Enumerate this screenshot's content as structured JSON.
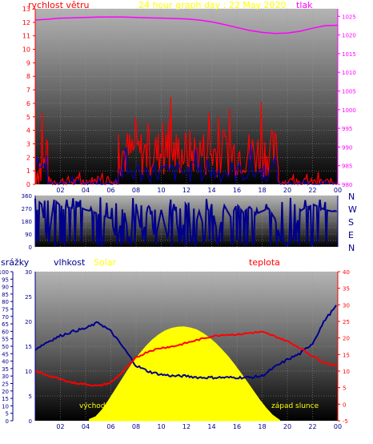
{
  "header": {
    "left_label": "rychlost větru",
    "title": "24 hour graph day : 22 May 2020",
    "right_label": "tlak"
  },
  "direction_labels": [
    "N",
    "W",
    "S",
    "E",
    "N"
  ],
  "bottom_labels": {
    "rain": "srážky",
    "humidity": "vlhkost",
    "solar": "Solar",
    "temperature": "teplota",
    "sunrise": "východ",
    "sunset": "západ slunce"
  },
  "colors": {
    "wind": "#ff0000",
    "gust": "#0000cc",
    "pressure": "#ff00ff",
    "direction": "#00008b",
    "humidity": "#00008b",
    "temperature": "#ff0000",
    "solar": "#ffff00",
    "title": "#ffff00",
    "axis_text": "#00008b"
  },
  "chart_data": [
    {
      "id": "wind_pressure",
      "type": "line",
      "title": "24 hour graph day : 22 May 2020",
      "x_ticks": [
        "02",
        "04",
        "06",
        "08",
        "10",
        "12",
        "14",
        "16",
        "18",
        "20",
        "22",
        "00"
      ],
      "y_left": {
        "label": "rychlost větru",
        "range": [
          0,
          13
        ],
        "ticks": [
          0,
          1,
          2,
          3,
          4,
          5,
          6,
          7,
          8,
          9,
          10,
          11,
          12,
          13
        ]
      },
      "y_right": {
        "label": "tlak",
        "range": [
          980,
          1027
        ],
        "ticks": [
          980,
          985,
          990,
          995,
          1000,
          1005,
          1010,
          1015,
          1020,
          1025
        ]
      },
      "series": [
        {
          "name": "tlak",
          "axis": "right",
          "x": [
            0,
            1,
            2,
            3,
            4,
            5,
            6,
            7,
            8,
            9,
            10,
            11,
            12,
            13,
            14,
            15,
            16,
            17,
            18,
            19,
            20,
            21,
            22,
            23,
            24
          ],
          "y": [
            1024,
            1024.2,
            1024.5,
            1024.6,
            1024.7,
            1024.8,
            1024.8,
            1024.8,
            1024.7,
            1024.6,
            1024.5,
            1024.4,
            1024.3,
            1024,
            1023.5,
            1022.8,
            1022,
            1021.2,
            1020.7,
            1020.4,
            1020.5,
            1021,
            1021.8,
            1022.5,
            1022.6
          ]
        },
        {
          "name": "",
          "role": "wind",
          "axis": "left",
          "segments": [
            {
              "from": 0,
              "to": 1.0,
              "base": 0.3,
              "amp": 2.2
            },
            {
              "from": 1.0,
              "to": 6.6,
              "base": 0.05,
              "amp": 0.4
            },
            {
              "from": 6.6,
              "to": 19.3,
              "base": 1.6,
              "amp": 1.8
            },
            {
              "from": 19.3,
              "to": 24,
              "base": 0.05,
              "amp": 0.3
            }
          ]
        },
        {
          "name": "",
          "role": "gust",
          "axis": "left",
          "segments": [
            {
              "from": 0,
              "to": 1.0,
              "base": 1.5,
              "amp": 0.6
            },
            {
              "from": 1.0,
              "to": 6.6,
              "base": 0.0,
              "amp": 0.2
            },
            {
              "from": 6.6,
              "to": 19.3,
              "base": 0.6,
              "amp": 0.8
            },
            {
              "from": 19.3,
              "to": 24,
              "base": 0.0,
              "amp": 0.1
            }
          ]
        }
      ]
    },
    {
      "id": "wind_direction",
      "type": "line",
      "x_ticks": [
        "02",
        "04",
        "06",
        "08",
        "10",
        "12",
        "14",
        "16",
        "18",
        "20",
        "22",
        "00"
      ],
      "y_left": {
        "range": [
          0,
          360
        ],
        "ticks": [
          0,
          45,
          90,
          135,
          180,
          225,
          270,
          315,
          360
        ]
      },
      "series": [
        {
          "name": "",
          "role": "direction",
          "x": [
            0,
            0.5,
            1,
            1.5,
            2,
            2.5,
            3,
            3.5,
            4,
            4.5,
            5,
            5.5,
            6,
            6.5,
            7,
            7.5,
            8,
            8.5,
            9,
            9.5,
            10,
            10.5,
            11,
            11.5,
            12,
            12.5,
            13,
            13.5,
            14,
            14.5,
            15,
            15.5,
            16,
            16.5,
            17,
            17.5,
            18,
            18.5,
            19,
            19.5,
            20,
            20.5,
            21,
            21.5,
            22,
            22.5,
            23,
            23.5,
            24
          ],
          "y": [
            340,
            300,
            10,
            330,
            290,
            280,
            270,
            280,
            260,
            250,
            230,
            215,
            200,
            20,
            280,
            30,
            300,
            50,
            320,
            40,
            260,
            60,
            300,
            20,
            290,
            70,
            250,
            100,
            300,
            60,
            290,
            210,
            300,
            240,
            280,
            230,
            250,
            270,
            200,
            40,
            10,
            60,
            250,
            280,
            300,
            280,
            260,
            250,
            250
          ]
        }
      ]
    },
    {
      "id": "rain_humidity_solar_temperature",
      "type": "line",
      "x_ticks": [
        "02",
        "04",
        "06",
        "08",
        "10",
        "12",
        "14",
        "16",
        "18",
        "20",
        "22",
        "00"
      ],
      "axes": {
        "srážky": {
          "range": [
            0,
            100
          ],
          "ticks": [
            0,
            5,
            10,
            15,
            20,
            25,
            30,
            35,
            40,
            45,
            50,
            55,
            60,
            65,
            70,
            75,
            80,
            85,
            90,
            95,
            100
          ]
        },
        "vlhkost": {
          "range": [
            0,
            30
          ],
          "ticks": [
            0,
            5,
            10,
            15,
            20,
            25,
            30
          ]
        },
        "teplota": {
          "range": [
            -5,
            40
          ],
          "ticks": [
            -5,
            0,
            5,
            10,
            15,
            20,
            25,
            30,
            35,
            40
          ]
        }
      },
      "series": [
        {
          "name": "vlhkost",
          "axis": "srážky",
          "x": [
            0,
            1,
            2,
            3,
            4,
            5,
            6,
            7,
            8,
            9,
            10,
            11,
            12,
            13,
            14,
            15,
            16,
            17,
            18,
            19,
            20,
            21,
            22,
            23,
            24
          ],
          "y": [
            48,
            53,
            57,
            60,
            62,
            66,
            60,
            49,
            37,
            33,
            31,
            30,
            30,
            29,
            29,
            29,
            29,
            29,
            30,
            36,
            41,
            45,
            52,
            68,
            78
          ]
        },
        {
          "name": "teplota",
          "axis": "teplota",
          "x": [
            0,
            1,
            2,
            3,
            4,
            5,
            6,
            7,
            8,
            9,
            10,
            11,
            12,
            13,
            14,
            15,
            16,
            17,
            18,
            19,
            20,
            21,
            22,
            23,
            24
          ],
          "y": [
            10,
            8.7,
            7.5,
            6.5,
            6,
            5.5,
            6.5,
            10,
            14,
            16,
            17,
            17.5,
            18.5,
            19.5,
            20.5,
            21,
            21,
            21.5,
            21.8,
            20.5,
            19,
            17,
            14.5,
            12.5,
            11.5
          ]
        },
        {
          "name": "Solar",
          "axis": "vlhkost",
          "x": [
            4.3,
            4.8,
            5.3,
            5.8,
            6.3,
            6.8,
            7.3,
            7.8,
            8.3,
            8.8,
            9.3,
            9.8,
            10.3,
            10.8,
            11.3,
            11.8,
            12.3,
            12.8,
            13.3,
            13.8,
            14.3,
            14.8,
            15.3,
            15.8,
            16.3,
            16.8,
            17.3,
            17.8,
            18.3,
            18.8,
            19.4
          ],
          "y": [
            0.3,
            0.8,
            2.2,
            4.0,
            6.0,
            8.0,
            10.0,
            11.9,
            13.5,
            15.0,
            16.3,
            17.3,
            18.1,
            18.6,
            18.85,
            18.9,
            18.7,
            18.3,
            17.6,
            16.7,
            15.6,
            14.3,
            12.9,
            11.3,
            9.6,
            7.8,
            6.0,
            4.2,
            2.6,
            1.2,
            0.1
          ]
        }
      ]
    }
  ]
}
